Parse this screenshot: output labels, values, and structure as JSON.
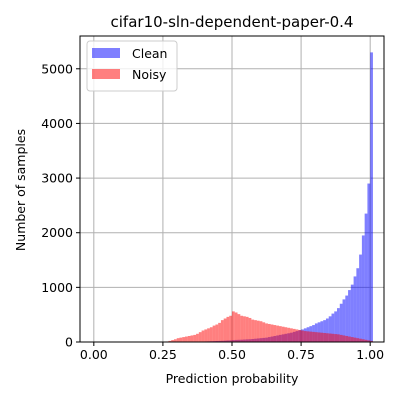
{
  "chart_data": {
    "type": "bar",
    "title": "cifar10-sln-dependent-paper-0.4",
    "xlabel": "Prediction probability",
    "ylabel": "Number of samples",
    "xlim": [
      -0.05,
      1.05
    ],
    "ylim": [
      0,
      5600
    ],
    "xticks": [
      0.0,
      0.25,
      0.5,
      0.75,
      1.0
    ],
    "xtick_labels": [
      "0.00",
      "0.25",
      "0.50",
      "0.75",
      "1.00"
    ],
    "yticks": [
      0,
      1000,
      2000,
      3000,
      4000,
      5000
    ],
    "ytick_labels": [
      "0",
      "1000",
      "2000",
      "3000",
      "4000",
      "5000"
    ],
    "grid": true,
    "legend_position": "upper-left",
    "bin_width": 0.01,
    "bin_start": 0.0,
    "series": [
      {
        "name": "Clean",
        "color": "#0000ff",
        "alpha": 0.5,
        "values": [
          0,
          0,
          0,
          0,
          0,
          0,
          0,
          0,
          0,
          0,
          0,
          0,
          0,
          0,
          0,
          0,
          0,
          0,
          0,
          0,
          0,
          0,
          0,
          0,
          0,
          0,
          0,
          0,
          0,
          0,
          2,
          2,
          3,
          3,
          4,
          5,
          6,
          7,
          8,
          9,
          10,
          12,
          14,
          16,
          18,
          20,
          22,
          25,
          28,
          30,
          35,
          38,
          40,
          42,
          45,
          48,
          50,
          55,
          60,
          65,
          70,
          75,
          80,
          90,
          100,
          110,
          120,
          130,
          140,
          150,
          160,
          170,
          185,
          200,
          215,
          230,
          250,
          270,
          290,
          310,
          340,
          360,
          380,
          400,
          430,
          470,
          520,
          560,
          620,
          700,
          780,
          850,
          950,
          1050,
          1200,
          1350,
          1600,
          1950,
          2350,
          2900,
          5300
        ]
      },
      {
        "name": "Noisy",
        "color": "#ff0000",
        "alpha": 0.5,
        "values": [
          0,
          0,
          0,
          0,
          0,
          0,
          0,
          0,
          0,
          0,
          0,
          0,
          0,
          0,
          0,
          0,
          0,
          0,
          0,
          0,
          0,
          0,
          0,
          0,
          0,
          5,
          10,
          20,
          35,
          50,
          70,
          80,
          90,
          100,
          110,
          120,
          130,
          150,
          180,
          210,
          230,
          250,
          270,
          300,
          320,
          350,
          400,
          430,
          460,
          480,
          560,
          540,
          510,
          480,
          470,
          460,
          440,
          410,
          400,
          390,
          380,
          360,
          340,
          330,
          320,
          310,
          300,
          290,
          280,
          270,
          260,
          250,
          240,
          230,
          220,
          210,
          200,
          195,
          190,
          185,
          180,
          175,
          170,
          165,
          160,
          155,
          150,
          145,
          140,
          130,
          120,
          110,
          100,
          90,
          80,
          70,
          60,
          50,
          40,
          30,
          20
        ]
      }
    ]
  }
}
